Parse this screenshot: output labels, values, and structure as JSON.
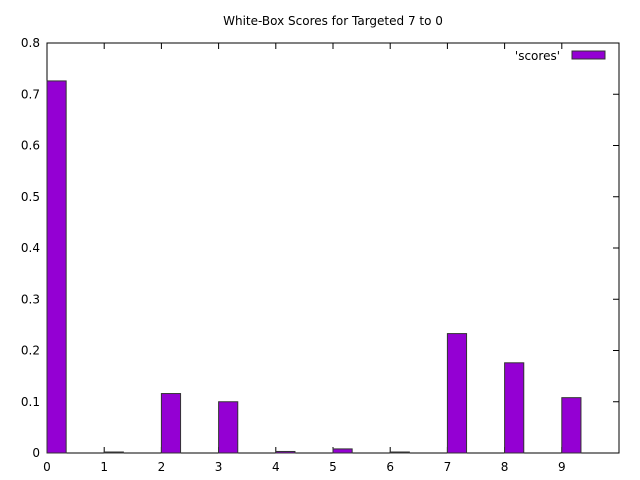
{
  "chart_data": {
    "type": "bar",
    "title": "White-Box Scores for Targeted 7 to 0",
    "xlabel": "",
    "ylabel": "",
    "categories": [
      "0",
      "1",
      "2",
      "3",
      "4",
      "5",
      "6",
      "7",
      "8",
      "9"
    ],
    "series": [
      {
        "name": "'scores'",
        "values": [
          0.726,
          0.001,
          0.116,
          0.1,
          0.003,
          0.008,
          0.001,
          0.233,
          0.176,
          0.108
        ],
        "color": "#9400d3"
      }
    ],
    "xlim": [
      0,
      10
    ],
    "ylim": [
      0,
      0.8
    ],
    "yticks": [
      "0",
      "0.1",
      "0.2",
      "0.3",
      "0.4",
      "0.5",
      "0.6",
      "0.7",
      "0.8"
    ],
    "grid": false,
    "legend_position": "top-right"
  }
}
